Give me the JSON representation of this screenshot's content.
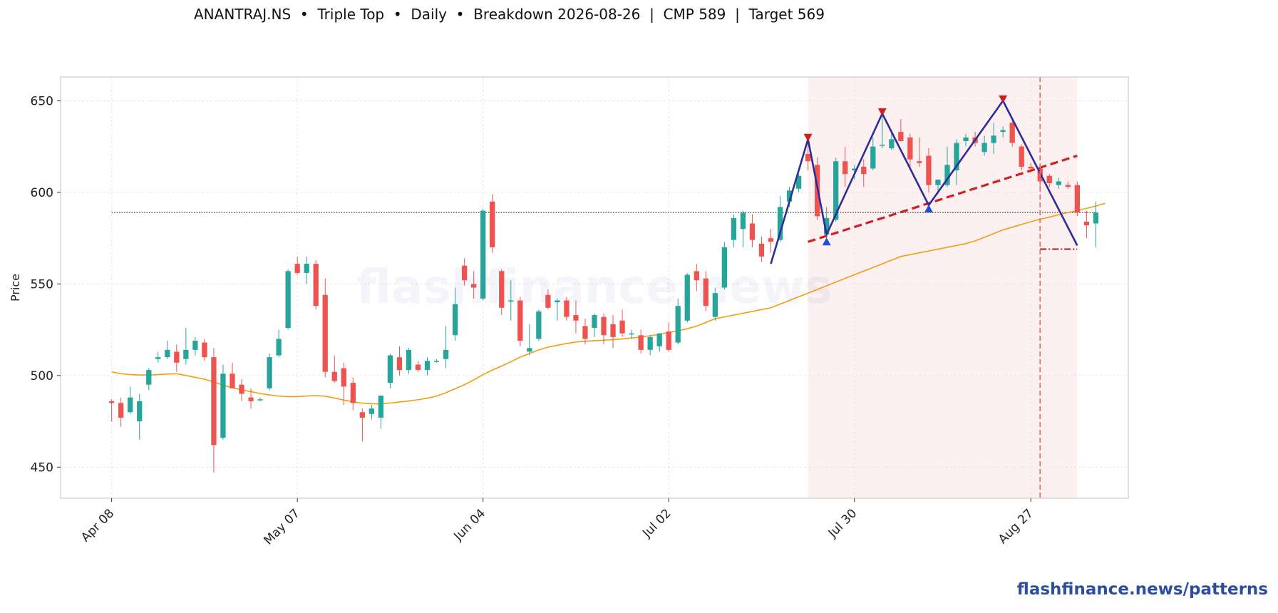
{
  "title": "ANANTRAJ.NS  •  Triple Top  •  Daily  •  Breakdown 2026-08-26  |  CMP 589  |  Target 569",
  "watermark_center": "flashfinance.news",
  "watermark_brand": "flashfinance.news/patterns",
  "colors": {
    "up": "#26a69a",
    "down": "#ef5350",
    "sma": "#f39c12",
    "pattern": "#2d2d9a",
    "neckline": "#cc2222",
    "highlight": "rgba(240,160,160,0.16)",
    "breakout": "#e57373",
    "target": "#a02020",
    "cmp": "#333333",
    "grid": "#e6e6e6"
  },
  "chart_data": {
    "type": "candlestick",
    "ylabel": "Price",
    "ylim": [
      433,
      663
    ],
    "yticks": [
      450,
      500,
      550,
      600,
      650
    ],
    "xlim": [
      -5.5,
      109.5
    ],
    "xticks": [
      {
        "i": 0,
        "label": "Apr 08"
      },
      {
        "i": 20,
        "label": "May 07"
      },
      {
        "i": 40,
        "label": "Jun 04"
      },
      {
        "i": 60,
        "label": "Jul 02"
      },
      {
        "i": 80,
        "label": "Jul 30"
      },
      {
        "i": 99,
        "label": "Aug 27"
      }
    ],
    "candles": [
      [
        486,
        487,
        475,
        485
      ],
      [
        485,
        488,
        472,
        477
      ],
      [
        480,
        494,
        479,
        488
      ],
      [
        475,
        490,
        465,
        486
      ],
      [
        495,
        504,
        492,
        503
      ],
      [
        509,
        513,
        507,
        510
      ],
      [
        510,
        519,
        509,
        514
      ],
      [
        513,
        517,
        502,
        507
      ],
      [
        509,
        526,
        506,
        514
      ],
      [
        514,
        521,
        511,
        519
      ],
      [
        518,
        520,
        508,
        510
      ],
      [
        510,
        515,
        447,
        462
      ],
      [
        466,
        506,
        465,
        501
      ],
      [
        501,
        507,
        493,
        493
      ],
      [
        495,
        498,
        486,
        490
      ],
      [
        488,
        493,
        482,
        486
      ],
      [
        487,
        488,
        486,
        487
      ],
      [
        493,
        512,
        492,
        510
      ],
      [
        511,
        525,
        510,
        520
      ],
      [
        526,
        558,
        525,
        557
      ],
      [
        561,
        565,
        555,
        556
      ],
      [
        556,
        565,
        550,
        561
      ],
      [
        561,
        563,
        536,
        538
      ],
      [
        544,
        553,
        499,
        502
      ],
      [
        502,
        511,
        496,
        497
      ],
      [
        504,
        507,
        484,
        494
      ],
      [
        496,
        499,
        481,
        485
      ],
      [
        480,
        482,
        464,
        477
      ],
      [
        479,
        484,
        476,
        482
      ],
      [
        477,
        489,
        471,
        489
      ],
      [
        496,
        512,
        493,
        511
      ],
      [
        510,
        516,
        500,
        503
      ],
      [
        503,
        515,
        501,
        514
      ],
      [
        506,
        508,
        502,
        503
      ],
      [
        503,
        510,
        500,
        508
      ],
      [
        508,
        509,
        507,
        508
      ],
      [
        509,
        527,
        504,
        514
      ],
      [
        522,
        548,
        519,
        539
      ],
      [
        560,
        564,
        549,
        552
      ],
      [
        550,
        557,
        542,
        548
      ],
      [
        542,
        591,
        541,
        590
      ],
      [
        595,
        599,
        567,
        570
      ],
      [
        557,
        558,
        533,
        537
      ],
      [
        541,
        552,
        530,
        541
      ],
      [
        541,
        543,
        516,
        519
      ],
      [
        513,
        528,
        511,
        515
      ],
      [
        520,
        536,
        519,
        535
      ],
      [
        544,
        547,
        536,
        537
      ],
      [
        540,
        542,
        530,
        541
      ],
      [
        541,
        543,
        530,
        532
      ],
      [
        533,
        541,
        523,
        530
      ],
      [
        527,
        531,
        517,
        520
      ],
      [
        526,
        534,
        521,
        533
      ],
      [
        532,
        534,
        517,
        522
      ],
      [
        528,
        533,
        515,
        521
      ],
      [
        530,
        536,
        521,
        523
      ],
      [
        523,
        525,
        520,
        523
      ],
      [
        522,
        525,
        512,
        514
      ],
      [
        514,
        522,
        511,
        521
      ],
      [
        516,
        523,
        513,
        523
      ],
      [
        524,
        529,
        513,
        514
      ],
      [
        518,
        542,
        517,
        538
      ],
      [
        530,
        556,
        529,
        555
      ],
      [
        557,
        561,
        546,
        552
      ],
      [
        553,
        557,
        535,
        538
      ],
      [
        532,
        548,
        530,
        545
      ],
      [
        548,
        573,
        547,
        570
      ],
      [
        574,
        588,
        570,
        586
      ],
      [
        580,
        590,
        570,
        589
      ],
      [
        583,
        588,
        570,
        574
      ],
      [
        572,
        576,
        562,
        565
      ],
      [
        575,
        580,
        567,
        573
      ],
      [
        574,
        598,
        573,
        592
      ],
      [
        595,
        603,
        592,
        601
      ],
      [
        602,
        610,
        600,
        609
      ],
      [
        621,
        628,
        612,
        617
      ],
      [
        615,
        619,
        585,
        587
      ],
      [
        577,
        592,
        575,
        586
      ],
      [
        585,
        619,
        584,
        617
      ],
      [
        617,
        625,
        603,
        610
      ],
      [
        612,
        615,
        607,
        613
      ],
      [
        614,
        618,
        603,
        610
      ],
      [
        613,
        630,
        612,
        625
      ],
      [
        626,
        645,
        624,
        626
      ],
      [
        624,
        634,
        623,
        629
      ],
      [
        633,
        640,
        628,
        628
      ],
      [
        630,
        632,
        614,
        618
      ],
      [
        617,
        630,
        614,
        616
      ],
      [
        620,
        624,
        600,
        604
      ],
      [
        604,
        606,
        599,
        607
      ],
      [
        604,
        625,
        603,
        615
      ],
      [
        612,
        629,
        604,
        627
      ],
      [
        628,
        632,
        625,
        630
      ],
      [
        630,
        633,
        625,
        627
      ],
      [
        622,
        631,
        620,
        627
      ],
      [
        627,
        638,
        621,
        631
      ],
      [
        633,
        636,
        630,
        634
      ],
      [
        638,
        640,
        625,
        627
      ],
      [
        625,
        626,
        612,
        614
      ],
      [
        614,
        616,
        611,
        613
      ],
      [
        613,
        615,
        602,
        606
      ],
      [
        609,
        610,
        603,
        605
      ],
      [
        604,
        608,
        602,
        606
      ],
      [
        604,
        606,
        602,
        603
      ],
      [
        604,
        606,
        587,
        589
      ],
      [
        584,
        590,
        575,
        582
      ],
      [
        583,
        595,
        570,
        589
      ]
    ],
    "sma": [
      502,
      501,
      500.5,
      500.3,
      500.3,
      500.5,
      500.8,
      501.0,
      500,
      499,
      498,
      496.5,
      494.8,
      493.3,
      492.2,
      491.2,
      490.2,
      489.4,
      488.8,
      488.5,
      488.5,
      488.8,
      489,
      488.7,
      487.7,
      486.6,
      485.6,
      484.9,
      484.6,
      484.5,
      485,
      485.5,
      486.1,
      486.8,
      487.6,
      488.8,
      490.6,
      492.8,
      495,
      497.6,
      500.5,
      503,
      505.2,
      507.5,
      510,
      512,
      514,
      515.5,
      516.5,
      517.5,
      518.3,
      518.7,
      519,
      519.3,
      519.6,
      520,
      520.5,
      521,
      521.7,
      522.5,
      523.5,
      524.5,
      525.5,
      527,
      529,
      531,
      532,
      533,
      534,
      535,
      536,
      537,
      539,
      541,
      543,
      545,
      547,
      549,
      551,
      553,
      555,
      557,
      559,
      561,
      563,
      565,
      566,
      567,
      568,
      569,
      570,
      571,
      572,
      573.5,
      575.5,
      577.5,
      579.5,
      581,
      582.5,
      584,
      585.3,
      586.5,
      587.8,
      589,
      590,
      591.3,
      592.5,
      594
    ],
    "pattern_line": [
      [
        71,
        561
      ],
      [
        75,
        629
      ],
      [
        77,
        577
      ],
      [
        83,
        643
      ],
      [
        88,
        593
      ],
      [
        96,
        650
      ],
      [
        104,
        571
      ]
    ],
    "peaks": [
      [
        75,
        630
      ],
      [
        83,
        644
      ],
      [
        96,
        651
      ]
    ],
    "troughs": [
      [
        77,
        573
      ],
      [
        88,
        591
      ]
    ],
    "neckline": [
      [
        75,
        573
      ],
      [
        104,
        620
      ]
    ],
    "cmp": 589,
    "target": 569,
    "breakdown_index": 100,
    "highlight_range": [
      75,
      104
    ],
    "target_line_range": [
      100,
      104
    ]
  }
}
